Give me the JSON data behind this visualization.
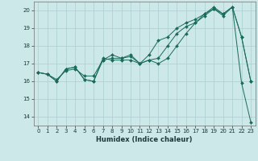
{
  "title": "",
  "xlabel": "Humidex (Indice chaleur)",
  "bg_color": "#cce8e8",
  "line_color": "#1a6b5a",
  "grid_color": "#aacfcf",
  "xlim": [
    -0.5,
    23.5
  ],
  "ylim": [
    13.5,
    20.5
  ],
  "xticks": [
    0,
    1,
    2,
    3,
    4,
    5,
    6,
    7,
    8,
    9,
    10,
    11,
    12,
    13,
    14,
    15,
    16,
    17,
    18,
    19,
    20,
    21,
    22,
    23
  ],
  "yticks": [
    14,
    15,
    16,
    17,
    18,
    19,
    20
  ],
  "series1_x": [
    0,
    1,
    2,
    3,
    4,
    5,
    6,
    7,
    8,
    9,
    10,
    11,
    12,
    13,
    14,
    15,
    16,
    17,
    18,
    19,
    20,
    21,
    22,
    23
  ],
  "series1_y": [
    16.5,
    16.4,
    16.0,
    16.7,
    16.8,
    16.1,
    16.0,
    17.2,
    17.3,
    17.3,
    17.4,
    17.0,
    17.2,
    17.3,
    18.0,
    18.7,
    19.1,
    19.3,
    19.7,
    20.1,
    19.7,
    20.2,
    15.9,
    13.7
  ],
  "series2_x": [
    0,
    1,
    2,
    3,
    4,
    5,
    6,
    7,
    8,
    9,
    10,
    11,
    12,
    13,
    14,
    15,
    16,
    17,
    18,
    19,
    20,
    21,
    22,
    23
  ],
  "series2_y": [
    16.5,
    16.4,
    16.1,
    16.6,
    16.7,
    16.3,
    16.3,
    17.2,
    17.5,
    17.3,
    17.5,
    17.0,
    17.5,
    18.3,
    18.5,
    19.0,
    19.3,
    19.5,
    19.8,
    20.1,
    19.8,
    20.2,
    18.5,
    16.0
  ],
  "series3_x": [
    0,
    1,
    2,
    3,
    4,
    5,
    6,
    7,
    8,
    9,
    10,
    11,
    12,
    13,
    14,
    15,
    16,
    17,
    18,
    19,
    20,
    21,
    22,
    23
  ],
  "series3_y": [
    16.5,
    16.4,
    16.0,
    16.7,
    16.8,
    16.1,
    16.0,
    17.3,
    17.2,
    17.2,
    17.2,
    17.0,
    17.2,
    17.0,
    17.3,
    18.0,
    18.7,
    19.3,
    19.8,
    20.2,
    19.8,
    20.2,
    18.5,
    16.0
  ],
  "tick_fontsize": 5,
  "xlabel_fontsize": 6,
  "marker_size": 2.0,
  "linewidth": 0.7
}
